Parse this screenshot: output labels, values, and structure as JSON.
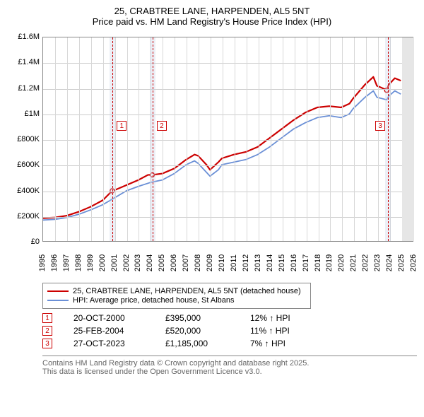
{
  "title": {
    "line1": "25, CRABTREE LANE, HARPENDEN, AL5 5NT",
    "line2": "Price paid vs. HM Land Registry's House Price Index (HPI)"
  },
  "chart": {
    "type": "line",
    "background_color": "#ffffff",
    "grid_color": "#cccccc",
    "border_color": "#888888",
    "x": {
      "min": 1995,
      "max": 2026,
      "ticks": [
        1995,
        1996,
        1997,
        1998,
        1999,
        2000,
        2001,
        2002,
        2003,
        2004,
        2005,
        2006,
        2007,
        2008,
        2009,
        2010,
        2011,
        2012,
        2013,
        2014,
        2015,
        2016,
        2017,
        2018,
        2019,
        2020,
        2021,
        2022,
        2023,
        2024,
        2025,
        2026
      ]
    },
    "y": {
      "min": 0,
      "max": 1600000,
      "ticks": [
        0,
        200000,
        400000,
        600000,
        800000,
        1000000,
        1200000,
        1400000,
        1600000
      ],
      "tick_labels": [
        "£0",
        "£200K",
        "£400K",
        "£600K",
        "£800K",
        "£1M",
        "£1.2M",
        "£1.4M",
        "£1.6M"
      ]
    },
    "series": [
      {
        "name": "25, CRABTREE LANE, HARPENDEN, AL5 5NT (detached house)",
        "color": "#cc0000",
        "line_width": 2.2,
        "points": [
          [
            1995,
            180000
          ],
          [
            1996,
            185000
          ],
          [
            1997,
            200000
          ],
          [
            1998,
            230000
          ],
          [
            1999,
            270000
          ],
          [
            2000,
            320000
          ],
          [
            2000.8,
            395000
          ],
          [
            2001,
            400000
          ],
          [
            2002,
            440000
          ],
          [
            2003,
            480000
          ],
          [
            2003.8,
            520000
          ],
          [
            2004.15,
            520000
          ],
          [
            2005,
            530000
          ],
          [
            2006,
            570000
          ],
          [
            2007,
            640000
          ],
          [
            2007.7,
            680000
          ],
          [
            2008,
            670000
          ],
          [
            2008.7,
            600000
          ],
          [
            2009,
            560000
          ],
          [
            2009.7,
            620000
          ],
          [
            2010,
            650000
          ],
          [
            2011,
            680000
          ],
          [
            2012,
            700000
          ],
          [
            2013,
            740000
          ],
          [
            2014,
            810000
          ],
          [
            2015,
            880000
          ],
          [
            2016,
            950000
          ],
          [
            2017,
            1010000
          ],
          [
            2018,
            1050000
          ],
          [
            2019,
            1060000
          ],
          [
            2020,
            1050000
          ],
          [
            2020.7,
            1080000
          ],
          [
            2021,
            1120000
          ],
          [
            2022,
            1230000
          ],
          [
            2022.7,
            1290000
          ],
          [
            2023,
            1220000
          ],
          [
            2023.5,
            1200000
          ],
          [
            2023.82,
            1185000
          ],
          [
            2024,
            1230000
          ],
          [
            2024.5,
            1280000
          ],
          [
            2025,
            1260000
          ]
        ]
      },
      {
        "name": "HPI: Average price, detached house, St Albans",
        "color": "#6a8fd6",
        "line_width": 1.8,
        "points": [
          [
            1995,
            165000
          ],
          [
            1996,
            170000
          ],
          [
            1997,
            185000
          ],
          [
            1998,
            210000
          ],
          [
            1999,
            245000
          ],
          [
            2000,
            285000
          ],
          [
            2001,
            340000
          ],
          [
            2002,
            395000
          ],
          [
            2003,
            430000
          ],
          [
            2004,
            460000
          ],
          [
            2005,
            480000
          ],
          [
            2006,
            530000
          ],
          [
            2007,
            600000
          ],
          [
            2007.7,
            630000
          ],
          [
            2008,
            610000
          ],
          [
            2008.7,
            540000
          ],
          [
            2009,
            510000
          ],
          [
            2009.7,
            560000
          ],
          [
            2010,
            600000
          ],
          [
            2011,
            620000
          ],
          [
            2012,
            640000
          ],
          [
            2013,
            680000
          ],
          [
            2014,
            740000
          ],
          [
            2015,
            810000
          ],
          [
            2016,
            880000
          ],
          [
            2017,
            930000
          ],
          [
            2018,
            970000
          ],
          [
            2019,
            985000
          ],
          [
            2020,
            970000
          ],
          [
            2020.7,
            1000000
          ],
          [
            2021,
            1040000
          ],
          [
            2022,
            1130000
          ],
          [
            2022.7,
            1180000
          ],
          [
            2023,
            1130000
          ],
          [
            2023.82,
            1110000
          ],
          [
            2024,
            1140000
          ],
          [
            2024.5,
            1180000
          ],
          [
            2025,
            1155000
          ]
        ]
      }
    ],
    "markers": {
      "color": "#cc0000",
      "fill": "#ffffff",
      "points_on_red": [
        [
          2000.8,
          395000
        ],
        [
          2004.15,
          520000
        ],
        [
          2023.82,
          1185000
        ]
      ]
    },
    "events": [
      {
        "n": 1,
        "x": 2000.8,
        "band": [
          2000.55,
          2001.05
        ],
        "marker_y_offset": 118
      },
      {
        "n": 2,
        "x": 2004.15,
        "band": [
          2003.9,
          2004.4
        ],
        "marker_y_offset": 118
      },
      {
        "n": 3,
        "x": 2023.82,
        "band": [
          2023.57,
          2024.07
        ],
        "marker_y_offset": 118
      }
    ],
    "right_band": [
      2025,
      2026
    ],
    "axis_font_size": 11,
    "title_font_size": 13
  },
  "legend": {
    "row1": "25, CRABTREE LANE, HARPENDEN, AL5 5NT (detached house)",
    "row2": "HPI: Average price, detached house, St Albans",
    "color1": "#cc0000",
    "color2": "#6a8fd6"
  },
  "events_table": [
    {
      "n": "1",
      "date": "20-OCT-2000",
      "price": "£395,000",
      "pct": "12% ↑ HPI"
    },
    {
      "n": "2",
      "date": "25-FEB-2004",
      "price": "£520,000",
      "pct": "11% ↑ HPI"
    },
    {
      "n": "3",
      "date": "27-OCT-2023",
      "price": "£1,185,000",
      "pct": "7% ↑ HPI"
    }
  ],
  "footer": {
    "line1": "Contains HM Land Registry data © Crown copyright and database right 2025.",
    "line2": "This data is licensed under the Open Government Licence v3.0."
  }
}
